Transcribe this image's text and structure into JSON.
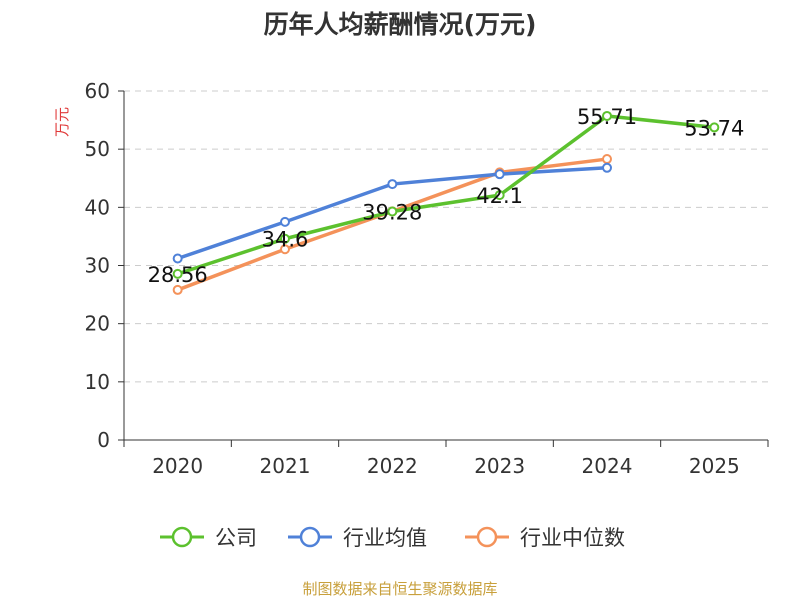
{
  "chart_data": {
    "type": "line",
    "title": "历年人均薪酬情况(万元)",
    "ylabel": "万元",
    "categories": [
      "2020",
      "2021",
      "2022",
      "2023",
      "2024",
      "2025"
    ],
    "ylim": [
      0,
      60
    ],
    "yticks": [
      "0",
      "10",
      "20",
      "30",
      "40",
      "50",
      "60"
    ],
    "grid": true,
    "legend_position": "bottom",
    "series": [
      {
        "name": "公司",
        "color": "#5cc12e",
        "values": [
          28.56,
          34.6,
          39.28,
          42.1,
          55.71,
          53.74
        ],
        "labels": [
          "28.56",
          "34.6",
          "39.28",
          "42.1",
          "55.71",
          "53.74"
        ]
      },
      {
        "name": "行业均值",
        "color": "#4f81d8",
        "values": [
          31.2,
          37.5,
          44.0,
          45.7,
          46.8,
          null
        ]
      },
      {
        "name": "行业中位数",
        "color": "#f4925a",
        "values": [
          25.8,
          32.8,
          39.3,
          46.0,
          48.3,
          null
        ]
      }
    ],
    "source": "制图数据来自恒生聚源数据库"
  }
}
